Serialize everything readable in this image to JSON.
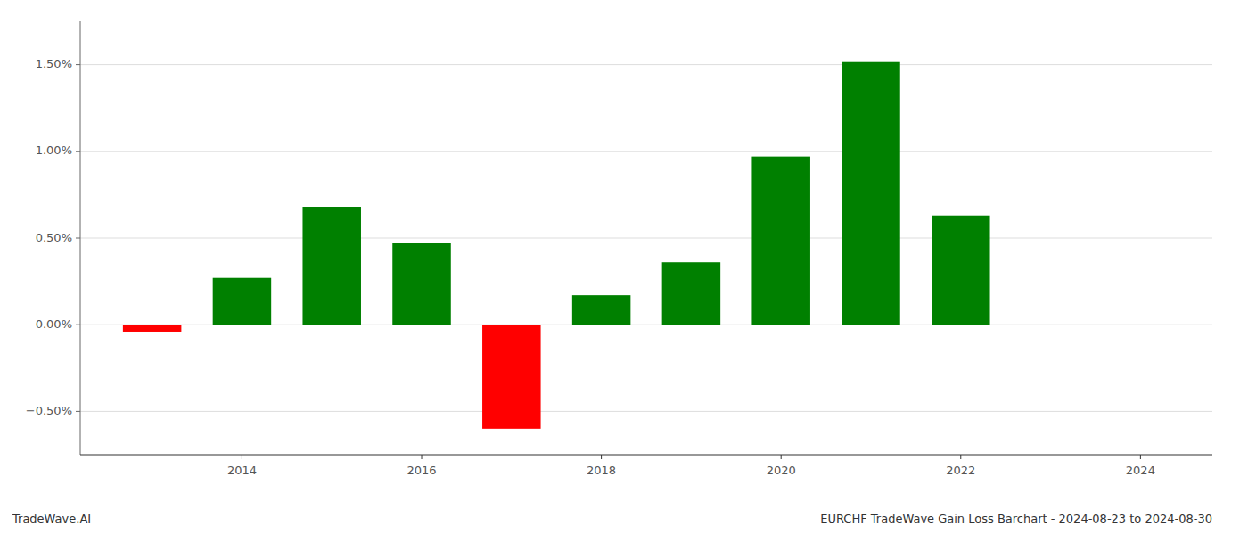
{
  "chart_data": {
    "type": "bar",
    "title": "EURCHF TradeWave Gain Loss Barchart - 2024-08-23 to 2024-08-30",
    "annotations": [
      "TradeWave.AI"
    ],
    "x": [
      2013,
      2014,
      2015,
      2016,
      2017,
      2018,
      2019,
      2020,
      2021,
      2022,
      2023
    ],
    "values": [
      -0.0004,
      0.0027,
      0.0068,
      0.0047,
      -0.006,
      0.0017,
      0.0036,
      0.0097,
      0.0152,
      0.0063,
      0.0
    ],
    "colors": [
      "#ff0000",
      "#008000",
      "#008000",
      "#008000",
      "#ff0000",
      "#008000",
      "#008000",
      "#008000",
      "#008000",
      "#008000",
      "#008000"
    ],
    "xlim": [
      2012.2,
      2024.8
    ],
    "xticks": [
      2014,
      2016,
      2018,
      2020,
      2022,
      2024
    ],
    "ylim": [
      -0.0075,
      0.0175
    ],
    "yticks": [
      {
        "value": -0.005,
        "label": "−0.50%"
      },
      {
        "value": 0.0,
        "label": "0.00%"
      },
      {
        "value": 0.005,
        "label": "0.50%"
      },
      {
        "value": 0.01,
        "label": "1.00%"
      },
      {
        "value": 0.015,
        "label": "1.50%"
      }
    ],
    "grid": true
  }
}
